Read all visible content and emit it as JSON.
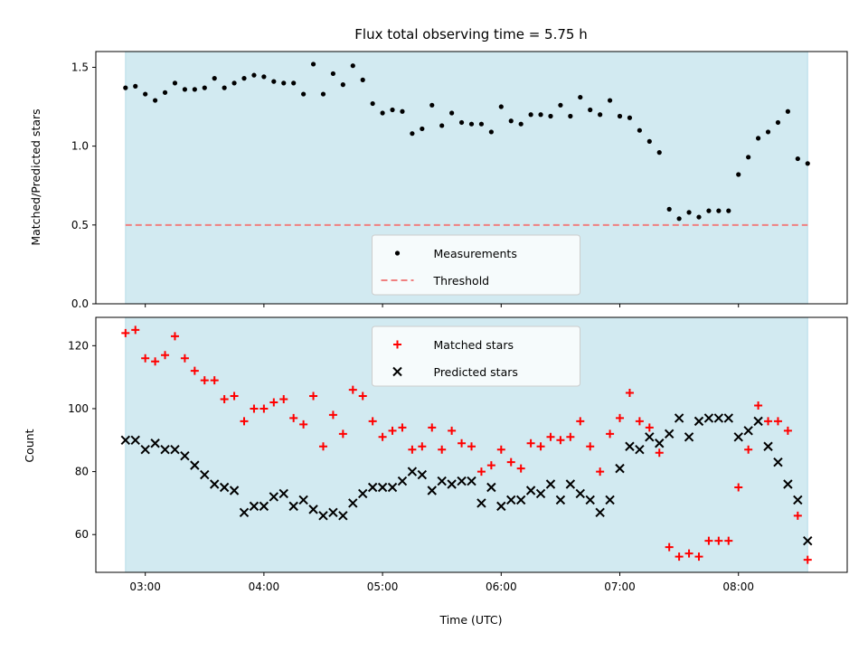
{
  "colors": {
    "background": "#ffffff",
    "observing_span": "#add8e6",
    "measurements": "#000000",
    "threshold": "#f08080",
    "matched": "#ff0000",
    "predicted": "#000000"
  },
  "chart_data": [
    {
      "type": "scatter",
      "title": "Flux total observing time = 5.75 h",
      "ylabel": "Matched/Predicted stars",
      "xlabel": "",
      "ylim": [
        0,
        1.6
      ],
      "yticks": [
        0.0,
        0.5,
        1.0,
        1.5
      ],
      "ytick_labels": [
        "0.0",
        "0.5",
        "1.0",
        "1.5"
      ],
      "xlim": [
        "02:35",
        "08:55"
      ],
      "observing_span": [
        "02:50",
        "08:35"
      ],
      "legend_position": "lower center",
      "series": [
        {
          "name": "Measurements",
          "marker": "dot",
          "x": [
            "02:50",
            "02:55",
            "03:00",
            "03:05",
            "03:10",
            "03:15",
            "03:20",
            "03:25",
            "03:30",
            "03:35",
            "03:40",
            "03:45",
            "03:50",
            "03:55",
            "04:00",
            "04:05",
            "04:10",
            "04:15",
            "04:20",
            "04:25",
            "04:30",
            "04:35",
            "04:40",
            "04:45",
            "04:50",
            "04:55",
            "05:00",
            "05:05",
            "05:10",
            "05:15",
            "05:20",
            "05:25",
            "05:30",
            "05:35",
            "05:40",
            "05:45",
            "05:50",
            "05:55",
            "06:00",
            "06:05",
            "06:10",
            "06:15",
            "06:20",
            "06:25",
            "06:30",
            "06:35",
            "06:40",
            "06:45",
            "06:50",
            "06:55",
            "07:00",
            "07:05",
            "07:10",
            "07:15",
            "07:20",
            "07:25",
            "07:30",
            "07:35",
            "07:40",
            "07:45",
            "07:50",
            "07:55",
            "08:00",
            "08:05",
            "08:10",
            "08:15",
            "08:20",
            "08:25",
            "08:30",
            "08:35"
          ],
          "y": [
            1.37,
            1.38,
            1.33,
            1.29,
            1.34,
            1.4,
            1.36,
            1.36,
            1.37,
            1.43,
            1.37,
            1.4,
            1.43,
            1.45,
            1.44,
            1.41,
            1.4,
            1.4,
            1.33,
            1.52,
            1.33,
            1.46,
            1.39,
            1.51,
            1.42,
            1.27,
            1.21,
            1.23,
            1.22,
            1.08,
            1.11,
            1.26,
            1.13,
            1.21,
            1.15,
            1.14,
            1.14,
            1.09,
            1.25,
            1.16,
            1.14,
            1.2,
            1.2,
            1.19,
            1.26,
            1.19,
            1.31,
            1.23,
            1.2,
            1.29,
            1.19,
            1.18,
            1.1,
            1.03,
            0.96,
            0.6,
            0.54,
            0.58,
            0.55,
            0.59,
            0.59,
            0.59,
            0.82,
            0.93,
            1.05,
            1.09,
            1.15,
            1.22,
            0.92,
            0.89
          ]
        },
        {
          "name": "Threshold",
          "marker": "dashed-line",
          "x": [
            "02:50",
            "08:35"
          ],
          "y": [
            0.5,
            0.5
          ]
        }
      ]
    },
    {
      "type": "scatter",
      "xlabel": "Time (UTC)",
      "ylabel": "Count",
      "ylim": [
        48,
        129
      ],
      "yticks": [
        60,
        80,
        100,
        120
      ],
      "ytick_labels": [
        "60",
        "80",
        "100",
        "120"
      ],
      "xlim": [
        "02:35",
        "08:55"
      ],
      "xticks": [
        "03:00",
        "04:00",
        "05:00",
        "06:00",
        "07:00",
        "08:00"
      ],
      "observing_span": [
        "02:50",
        "08:35"
      ],
      "legend_position": "upper center",
      "series": [
        {
          "name": "Matched stars",
          "marker": "plus",
          "x": [
            "02:50",
            "02:55",
            "03:00",
            "03:05",
            "03:10",
            "03:15",
            "03:20",
            "03:25",
            "03:30",
            "03:35",
            "03:40",
            "03:45",
            "03:50",
            "03:55",
            "04:00",
            "04:05",
            "04:10",
            "04:15",
            "04:20",
            "04:25",
            "04:30",
            "04:35",
            "04:40",
            "04:45",
            "04:50",
            "04:55",
            "05:00",
            "05:05",
            "05:10",
            "05:15",
            "05:20",
            "05:25",
            "05:30",
            "05:35",
            "05:40",
            "05:45",
            "05:50",
            "05:55",
            "06:00",
            "06:05",
            "06:10",
            "06:15",
            "06:20",
            "06:25",
            "06:30",
            "06:35",
            "06:40",
            "06:45",
            "06:50",
            "06:55",
            "07:00",
            "07:05",
            "07:10",
            "07:15",
            "07:20",
            "07:25",
            "07:30",
            "07:35",
            "07:40",
            "07:45",
            "07:50",
            "07:55",
            "08:00",
            "08:05",
            "08:10",
            "08:15",
            "08:20",
            "08:25",
            "08:30",
            "08:35"
          ],
          "y": [
            124,
            125,
            116,
            115,
            117,
            123,
            116,
            112,
            109,
            109,
            103,
            104,
            96,
            100,
            100,
            102,
            103,
            97,
            95,
            104,
            88,
            98,
            92,
            106,
            104,
            96,
            91,
            93,
            94,
            87,
            88,
            94,
            87,
            93,
            89,
            88,
            80,
            82,
            87,
            83,
            81,
            89,
            88,
            91,
            90,
            91,
            96,
            88,
            80,
            92,
            97,
            105,
            96,
            94,
            86,
            56,
            53,
            54,
            53,
            58,
            58,
            58,
            75,
            87,
            101,
            96,
            96,
            93,
            66,
            52
          ]
        },
        {
          "name": "Predicted stars",
          "marker": "x",
          "x": [
            "02:50",
            "02:55",
            "03:00",
            "03:05",
            "03:10",
            "03:15",
            "03:20",
            "03:25",
            "03:30",
            "03:35",
            "03:40",
            "03:45",
            "03:50",
            "03:55",
            "04:00",
            "04:05",
            "04:10",
            "04:15",
            "04:20",
            "04:25",
            "04:30",
            "04:35",
            "04:40",
            "04:45",
            "04:50",
            "04:55",
            "05:00",
            "05:05",
            "05:10",
            "05:15",
            "05:20",
            "05:25",
            "05:30",
            "05:35",
            "05:40",
            "05:45",
            "05:50",
            "05:55",
            "06:00",
            "06:05",
            "06:10",
            "06:15",
            "06:20",
            "06:25",
            "06:30",
            "06:35",
            "06:40",
            "06:45",
            "06:50",
            "06:55",
            "07:00",
            "07:05",
            "07:10",
            "07:15",
            "07:20",
            "07:25",
            "07:30",
            "07:35",
            "07:40",
            "07:45",
            "07:50",
            "07:55",
            "08:00",
            "08:05",
            "08:10",
            "08:15",
            "08:20",
            "08:25",
            "08:30",
            "08:35"
          ],
          "y": [
            90,
            90,
            87,
            89,
            87,
            87,
            85,
            82,
            79,
            76,
            75,
            74,
            67,
            69,
            69,
            72,
            73,
            69,
            71,
            68,
            66,
            67,
            66,
            70,
            73,
            75,
            75,
            75,
            77,
            80,
            79,
            74,
            77,
            76,
            77,
            77,
            70,
            75,
            69,
            71,
            71,
            74,
            73,
            76,
            71,
            76,
            73,
            71,
            67,
            71,
            81,
            88,
            87,
            91,
            89,
            92,
            97,
            91,
            96,
            97,
            97,
            97,
            91,
            93,
            96,
            88,
            83,
            76,
            71,
            58
          ]
        }
      ]
    }
  ]
}
